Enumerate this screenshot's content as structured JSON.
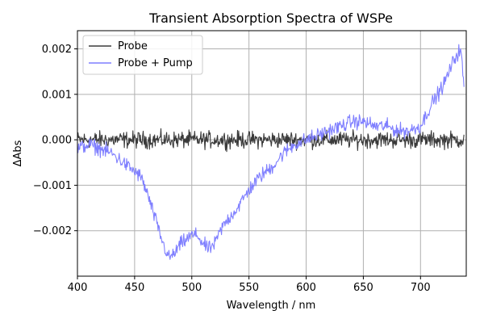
{
  "chart_data": {
    "type": "line",
    "title": "Transient Absorption Spectra of WSPe",
    "xlabel": "Wavelength / nm",
    "ylabel": "ΔAbs",
    "xlim": [
      400,
      740
    ],
    "ylim": [
      -0.003,
      0.0024
    ],
    "grid": true,
    "legend_position": "top-left",
    "x_ticks": [
      400,
      450,
      500,
      550,
      600,
      650,
      700
    ],
    "x_tick_labels": [
      "400",
      "450",
      "500",
      "550",
      "600",
      "650",
      "700"
    ],
    "y_ticks": [
      -0.002,
      -0.001,
      0.0,
      0.001,
      0.002
    ],
    "y_tick_labels": [
      "−0.002",
      "−0.001",
      "0.000",
      "0.001",
      "0.002"
    ],
    "series": [
      {
        "name": "Probe",
        "color": "#3a3a3a",
        "x": [
          400,
          440,
          480,
          520,
          560,
          600,
          640,
          680,
          720,
          738
        ],
        "y": [
          0.0,
          0.0,
          0.0,
          0.0,
          0.0,
          0.0,
          0.0,
          0.0,
          0.0,
          0.0
        ],
        "noise_amplitude": 0.00014
      },
      {
        "name": "Probe + Pump",
        "color": "#7f7fff",
        "x": [
          400,
          410,
          420,
          430,
          440,
          450,
          455,
          460,
          465,
          470,
          475,
          480,
          485,
          490,
          495,
          500,
          505,
          510,
          515,
          520,
          525,
          530,
          540,
          550,
          560,
          570,
          580,
          590,
          600,
          610,
          620,
          630,
          640,
          650,
          660,
          670,
          680,
          690,
          700,
          710,
          720,
          730,
          735,
          738
        ],
        "y": [
          -0.0002,
          -0.0001,
          -0.0002,
          -0.0003,
          -0.0005,
          -0.0007,
          -0.0008,
          -0.0011,
          -0.0015,
          -0.0019,
          -0.0023,
          -0.0026,
          -0.0025,
          -0.0023,
          -0.0022,
          -0.0021,
          -0.0021,
          -0.0023,
          -0.0024,
          -0.0023,
          -0.002,
          -0.0018,
          -0.0015,
          -0.0011,
          -0.0008,
          -0.0006,
          -0.0003,
          -0.0001,
          0.0,
          0.0001,
          0.0002,
          0.0003,
          0.0004,
          0.0004,
          0.0003,
          0.0003,
          0.0002,
          0.0002,
          0.0003,
          0.0008,
          0.0012,
          0.0018,
          0.002,
          0.0012
        ],
        "noise_amplitude": 0.00012
      }
    ]
  }
}
